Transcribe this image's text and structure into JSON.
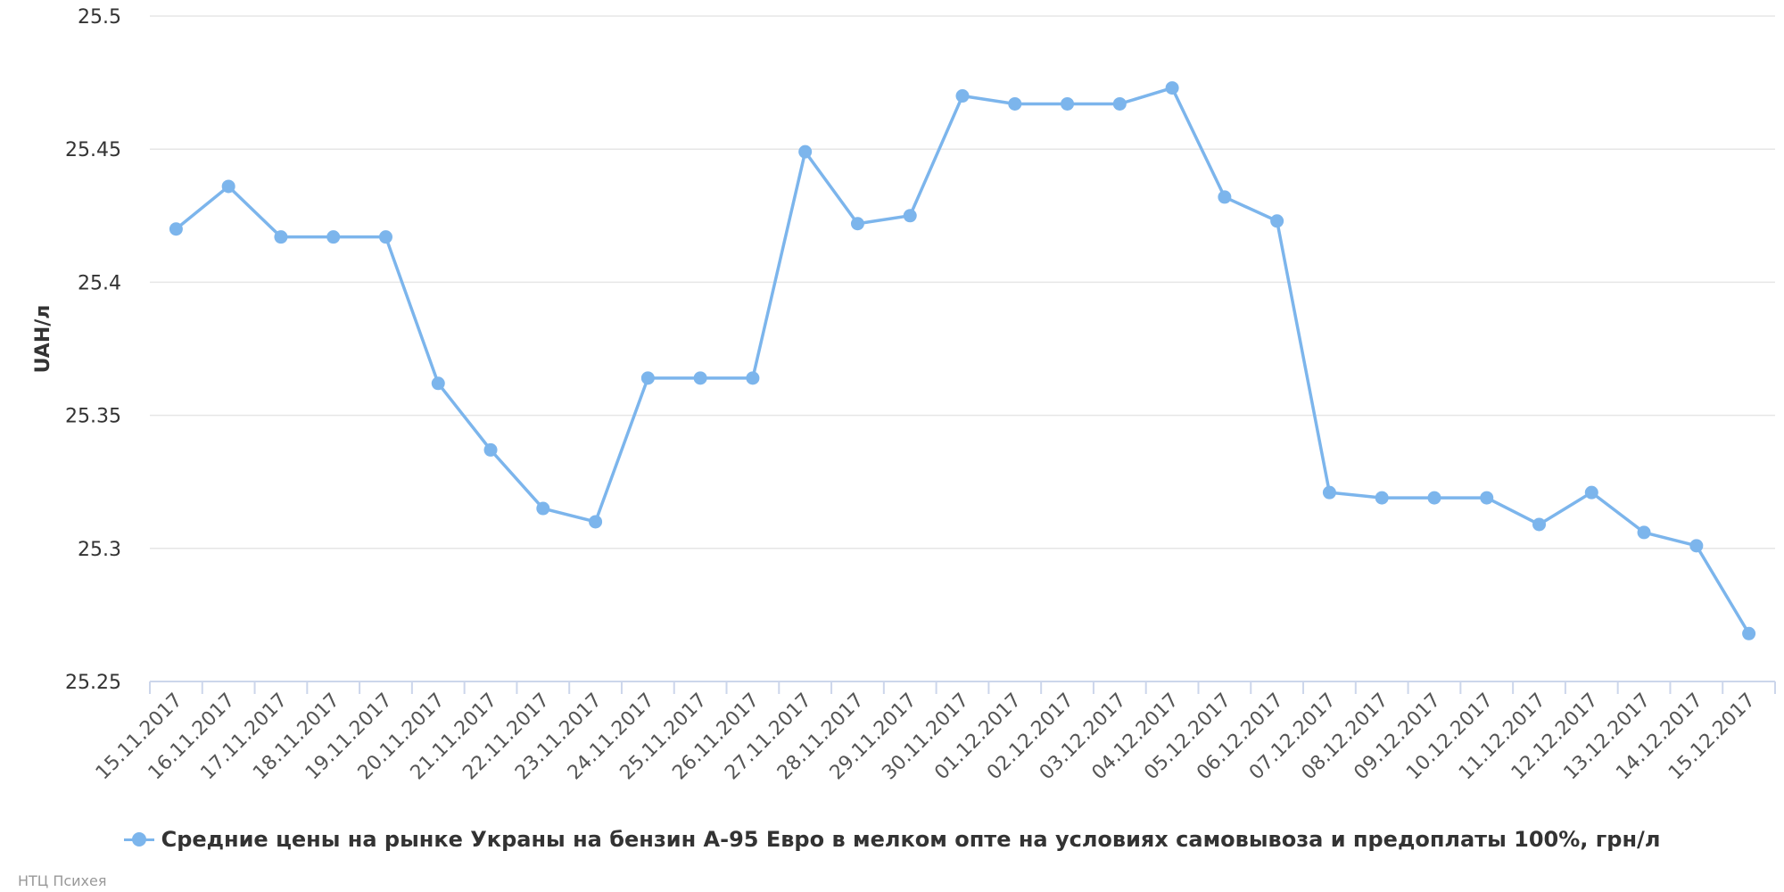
{
  "chart_data": {
    "type": "line",
    "ylabel": "UAH/л",
    "ylim": [
      25.25,
      25.5
    ],
    "yticks": [
      "25.25",
      "25.3",
      "25.35",
      "25.4",
      "25.45",
      "25.5"
    ],
    "grid": true,
    "legend_position": "bottom-center",
    "categories": [
      "15.11.2017",
      "16.11.2017",
      "17.11.2017",
      "18.11.2017",
      "19.11.2017",
      "20.11.2017",
      "21.11.2017",
      "22.11.2017",
      "23.11.2017",
      "24.11.2017",
      "25.11.2017",
      "26.11.2017",
      "27.11.2017",
      "28.11.2017",
      "29.11.2017",
      "30.11.2017",
      "01.12.2017",
      "02.12.2017",
      "03.12.2017",
      "04.12.2017",
      "05.12.2017",
      "06.12.2017",
      "07.12.2017",
      "08.12.2017",
      "09.12.2017",
      "10.12.2017",
      "11.12.2017",
      "12.12.2017",
      "13.12.2017",
      "14.12.2017",
      "15.12.2017"
    ],
    "series": [
      {
        "name": "Средние цены на рынке Украны на бензин А-95 Евро в мелком опте на условиях самовывоза и предоплаты 100%, грн/л",
        "color": "#7cb5ec",
        "values": [
          25.42,
          25.436,
          25.417,
          25.417,
          25.417,
          25.362,
          25.337,
          25.315,
          25.31,
          25.364,
          25.364,
          25.364,
          25.449,
          25.422,
          25.425,
          25.47,
          25.467,
          25.467,
          25.467,
          25.473,
          25.432,
          25.423,
          25.321,
          25.319,
          25.319,
          25.319,
          25.309,
          25.321,
          25.306,
          25.301,
          25.268
        ]
      }
    ]
  },
  "credits": "НТЦ Психея"
}
